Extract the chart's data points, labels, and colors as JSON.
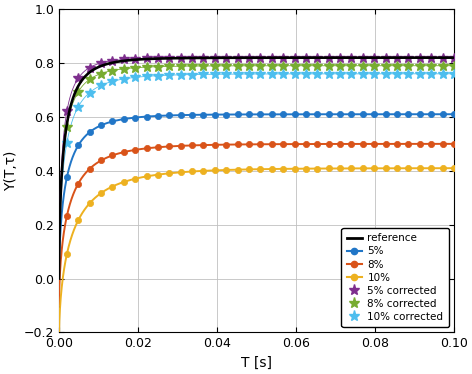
{
  "xlabel": "T [s]",
  "ylabel": "Y(T,τ)",
  "xlim": [
    0,
    0.1
  ],
  "ylim": [
    -0.2,
    1.0
  ],
  "xticks": [
    0,
    0.02,
    0.04,
    0.06,
    0.08,
    0.1
  ],
  "yticks": [
    -0.2,
    0,
    0.2,
    0.4,
    0.6,
    0.8,
    1.0
  ],
  "reference_color": "#000000",
  "color_5pct": "#2176c7",
  "color_8pct": "#d95319",
  "color_10pct": "#edb120",
  "color_5pct_corr": "#7e2f8e",
  "color_8pct_corr": "#77ac30",
  "color_10pct_corr": "#4dbeee",
  "linewidth": 1.4,
  "markersize_circle": 4.5,
  "markersize_star": 7,
  "n_markers": 35
}
